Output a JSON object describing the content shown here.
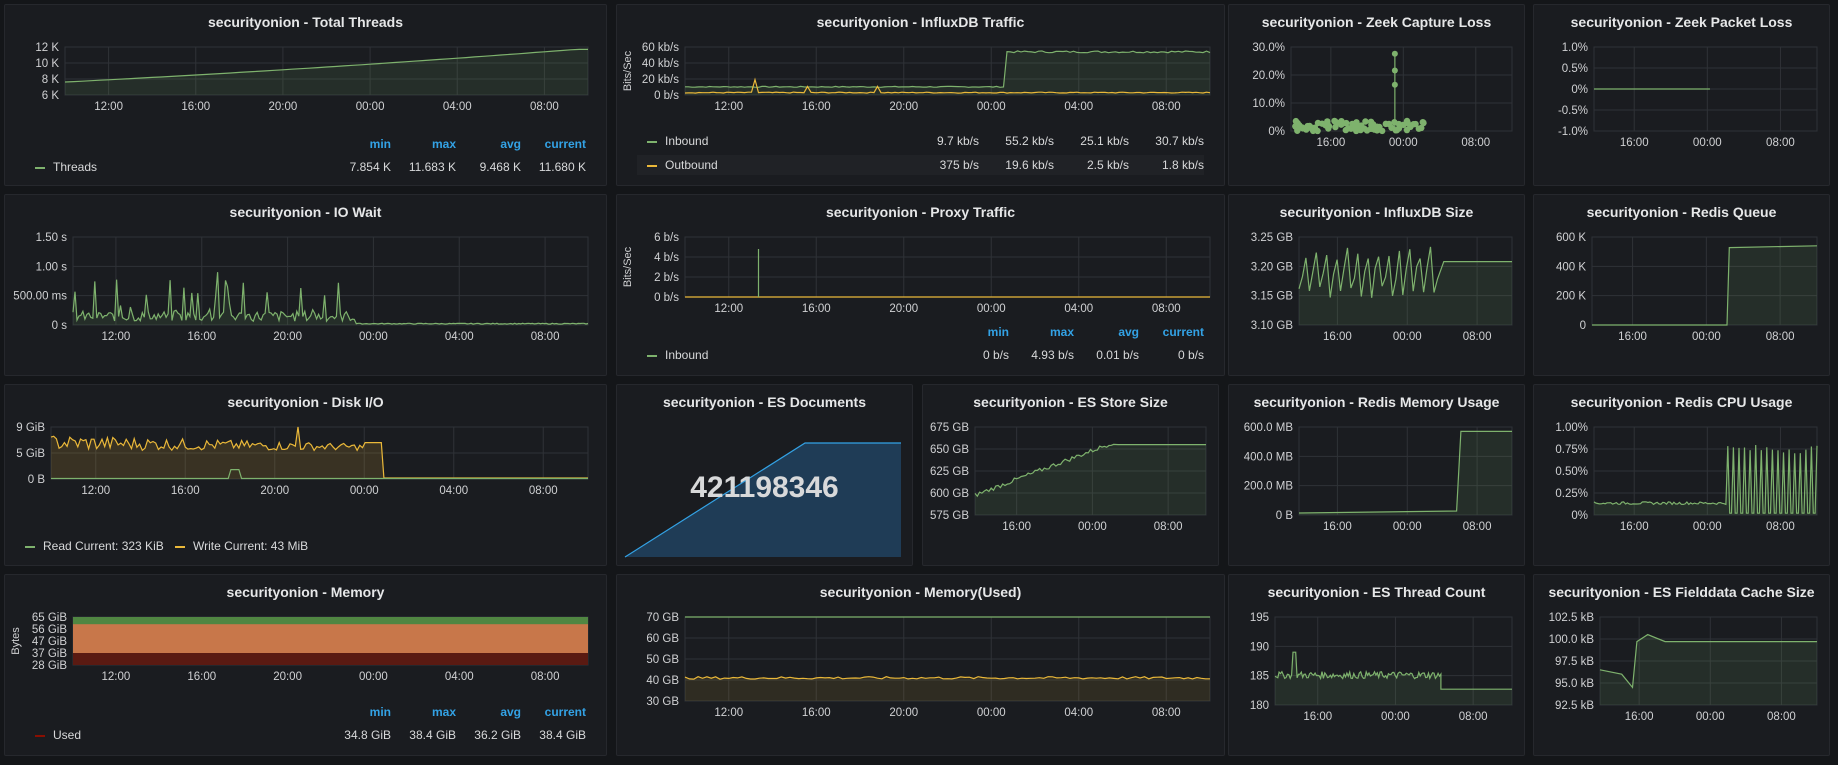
{
  "panels": {
    "threads": {
      "title": "securityonion - Total Threads",
      "legend_headers": [
        "min",
        "max",
        "avg",
        "current"
      ],
      "series": [
        {
          "name": "Threads",
          "color": "#7eb26d",
          "min": "7.854 K",
          "max": "11.683 K",
          "avg": "9.468 K",
          "current": "11.680 K"
        }
      ],
      "y_ticks": [
        "12 K",
        "10 K",
        "8 K",
        "6 K"
      ],
      "x_ticks": [
        "12:00",
        "16:00",
        "20:00",
        "00:00",
        "04:00",
        "08:00"
      ]
    },
    "influx_traffic": {
      "title": "securityonion - InfluxDB Traffic",
      "y_title": "Bits/Sec",
      "y_ticks": [
        "60 kb/s",
        "40 kb/s",
        "20 kb/s",
        "0 b/s"
      ],
      "x_ticks": [
        "12:00",
        "16:00",
        "20:00",
        "00:00",
        "04:00",
        "08:00"
      ],
      "series": [
        {
          "name": "Inbound",
          "color": "#7eb26d",
          "min": "9.7 kb/s",
          "max": "55.2 kb/s",
          "avg": "25.1 kb/s",
          "current": "30.7 kb/s"
        },
        {
          "name": "Outbound",
          "color": "#eab839",
          "min": "375 b/s",
          "max": "19.6 kb/s",
          "avg": "2.5 kb/s",
          "current": "1.8 kb/s"
        }
      ]
    },
    "zeek_capture": {
      "title": "securityonion - Zeek Capture Loss",
      "y_ticks": [
        "30.0%",
        "20.0%",
        "10.0%",
        "0%"
      ],
      "x_ticks": [
        "16:00",
        "00:00",
        "08:00"
      ]
    },
    "zeek_packet": {
      "title": "securityonion - Zeek Packet Loss",
      "y_ticks": [
        "1.0%",
        "0.5%",
        "0%",
        "-0.5%",
        "-1.0%"
      ],
      "x_ticks": [
        "16:00",
        "00:00",
        "08:00"
      ]
    },
    "io_wait": {
      "title": "securityonion - IO Wait",
      "y_ticks": [
        "1.50 s",
        "1.00 s",
        "500.00 ms",
        "0 s"
      ],
      "x_ticks": [
        "12:00",
        "16:00",
        "20:00",
        "00:00",
        "04:00",
        "08:00"
      ]
    },
    "proxy": {
      "title": "securityonion - Proxy Traffic",
      "y_title": "Bits/Sec",
      "y_ticks": [
        "6 b/s",
        "4 b/s",
        "2 b/s",
        "0 b/s"
      ],
      "x_ticks": [
        "12:00",
        "16:00",
        "20:00",
        "00:00",
        "04:00",
        "08:00"
      ],
      "legend_headers": [
        "min",
        "max",
        "avg",
        "current"
      ],
      "series": [
        {
          "name": "Inbound",
          "color": "#7eb26d",
          "min": "0 b/s",
          "max": "4.93 b/s",
          "avg": "0.01 b/s",
          "current": "0 b/s"
        }
      ]
    },
    "influx_size": {
      "title": "securityonion - InfluxDB Size",
      "y_ticks": [
        "3.25 GB",
        "3.20 GB",
        "3.15 GB",
        "3.10 GB"
      ],
      "x_ticks": [
        "16:00",
        "00:00",
        "08:00"
      ]
    },
    "redis_queue": {
      "title": "securityonion - Redis Queue",
      "y_ticks": [
        "600 K",
        "400 K",
        "200 K",
        "0"
      ],
      "x_ticks": [
        "16:00",
        "00:00",
        "08:00"
      ]
    },
    "disk_io": {
      "title": "securityonion - Disk I/O",
      "y_ticks": [
        "9 GiB",
        "5 GiB",
        "0 B"
      ],
      "x_ticks": [
        "12:00",
        "16:00",
        "20:00",
        "00:00",
        "04:00",
        "08:00"
      ],
      "legend": [
        {
          "label": "Read  Current: 323 KiB",
          "color": "#7eb26d"
        },
        {
          "label": "Write  Current: 43 MiB",
          "color": "#eab839"
        }
      ]
    },
    "es_docs": {
      "title": "securityonion - ES Documents",
      "value": "421198346"
    },
    "es_store": {
      "title": "securityonion - ES Store Size",
      "y_ticks": [
        "675 GB",
        "650 GB",
        "625 GB",
        "600 GB",
        "575 GB"
      ],
      "x_ticks": [
        "16:00",
        "00:00",
        "08:00"
      ]
    },
    "redis_mem": {
      "title": "securityonion - Redis Memory Usage",
      "y_ticks": [
        "600.0 MB",
        "400.0 MB",
        "200.0 MB",
        "0 B"
      ],
      "x_ticks": [
        "16:00",
        "00:00",
        "08:00"
      ]
    },
    "redis_cpu": {
      "title": "securityonion - Redis CPU Usage",
      "y_ticks": [
        "1.00%",
        "0.75%",
        "0.50%",
        "0.25%",
        "0%"
      ],
      "x_ticks": [
        "16:00",
        "00:00",
        "08:00"
      ]
    },
    "memory": {
      "title": "securityonion - Memory",
      "y_title": "Bytes",
      "y_ticks": [
        "65 GiB",
        "56 GiB",
        "47 GiB",
        "37 GiB",
        "28 GiB"
      ],
      "x_ticks": [
        "12:00",
        "16:00",
        "20:00",
        "00:00",
        "04:00",
        "08:00"
      ],
      "legend_headers": [
        "min",
        "max",
        "avg",
        "current"
      ],
      "series": [
        {
          "name": "Used",
          "color": "#890f02",
          "min": "34.8 GiB",
          "max": "38.4 GiB",
          "avg": "36.2 GiB",
          "current": "38.4 GiB"
        }
      ]
    },
    "memory_used": {
      "title": "securityonion - Memory(Used)",
      "y_ticks": [
        "70 GB",
        "60 GB",
        "50 GB",
        "40 GB",
        "30 GB"
      ],
      "x_ticks": [
        "12:00",
        "16:00",
        "20:00",
        "00:00",
        "04:00",
        "08:00"
      ]
    },
    "es_threads": {
      "title": "securityonion - ES Thread Count",
      "y_ticks": [
        "195",
        "190",
        "185",
        "180"
      ],
      "x_ticks": [
        "16:00",
        "00:00",
        "08:00"
      ]
    },
    "es_fielddata": {
      "title": "securityonion - ES Fielddata Cache Size",
      "y_ticks": [
        "102.5 kB",
        "100.0 kB",
        "97.5 kB",
        "95.0 kB",
        "92.5 kB"
      ],
      "x_ticks": [
        "16:00",
        "00:00",
        "08:00"
      ]
    }
  },
  "colors": {
    "green": "#7eb26d",
    "yellow": "#eab839",
    "orange": "#ef843c",
    "darkred": "#890f02",
    "blue": "#33a2e5"
  }
}
